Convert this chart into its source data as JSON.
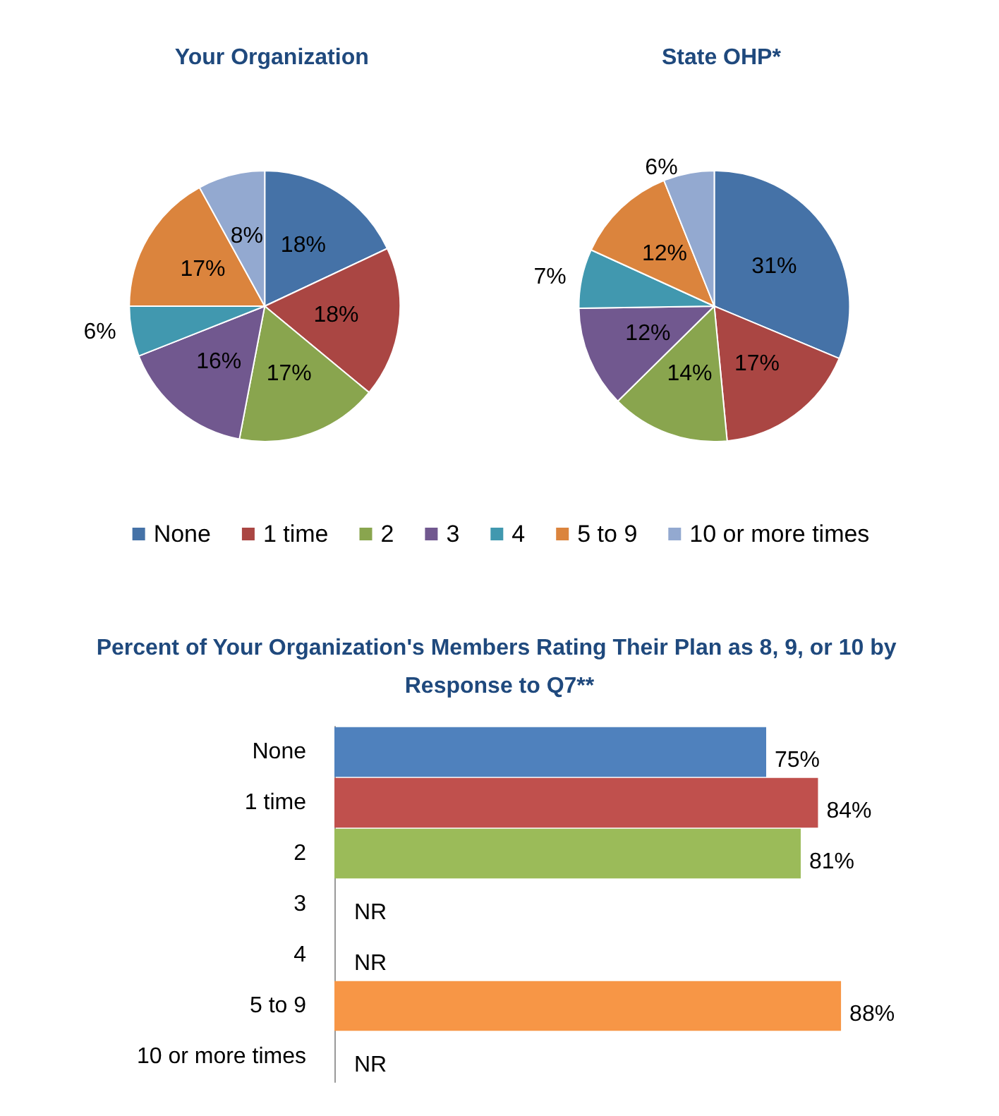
{
  "chart_data": [
    {
      "type": "pie",
      "categories": [
        "None",
        "1 time",
        "2",
        "3",
        "4",
        "5 to 9",
        "10 or more times"
      ],
      "colors": [
        "#4572a7",
        "#aa4643",
        "#89a54e",
        "#71588f",
        "#4198af",
        "#db843d",
        "#93a9d0"
      ],
      "legend": "bottom",
      "series": [
        {
          "name": "Your Organization",
          "values": [
            18,
            18,
            17,
            16,
            6,
            17,
            8
          ],
          "value_labels": [
            "18%",
            "18%",
            "17%",
            "16%",
            "6%",
            "17%",
            "8%"
          ]
        },
        {
          "name": "State OHP*",
          "values": [
            31,
            17,
            14,
            12,
            7,
            12,
            6
          ],
          "value_labels": [
            "31%",
            "17%",
            "14%",
            "12%",
            "7%",
            "12%",
            "6%"
          ]
        }
      ]
    },
    {
      "type": "bar",
      "orientation": "horizontal",
      "title": "Percent of Your Organization's Members Rating Their Plan as 8, 9, or 10 by Response to Q7**",
      "categories": [
        "None",
        "1 time",
        "2",
        "3",
        "4",
        "5 to 9",
        "10 or more times"
      ],
      "values": [
        75,
        84,
        81,
        null,
        null,
        88,
        null
      ],
      "colors": [
        "#4f81bd",
        "#c0504d",
        "#9bbb59",
        "#8064a2",
        "#4bacc6",
        "#f79646",
        "#a5b8d8"
      ],
      "value_labels": [
        "75%",
        "84%",
        "81%",
        "NR",
        "NR",
        "88%",
        "NR"
      ],
      "tick_labels": "y"
    }
  ]
}
